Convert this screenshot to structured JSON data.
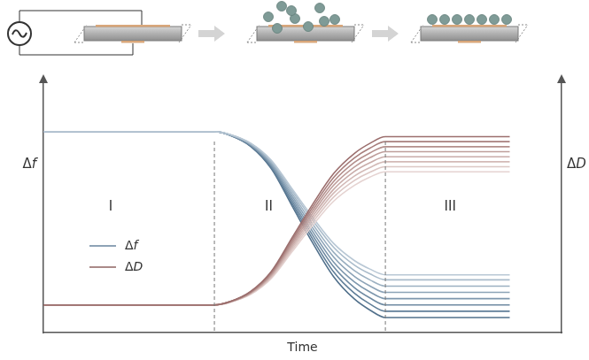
{
  "chart_data": {
    "type": "line",
    "x_label": "Time",
    "y_label": "Δf",
    "y2_label": "ΔD",
    "x": [
      0,
      10,
      20,
      30,
      33,
      36,
      40,
      44,
      48,
      52,
      56,
      60,
      63,
      66,
      70,
      80,
      90
    ],
    "xlim": [
      0,
      100
    ],
    "ylim": [
      0,
      100
    ],
    "y2lim": [
      0,
      100
    ],
    "tick_labels": false,
    "grid": false,
    "legend": "lower left",
    "dividers": [
      33,
      66
    ],
    "annotations": [
      {
        "text": "I",
        "x": 13,
        "y": 50
      },
      {
        "text": "II",
        "x": 43.5,
        "y": 50
      },
      {
        "text": "III",
        "x": 78.5,
        "y": 50
      }
    ],
    "series": [
      {
        "name": "Δf",
        "color": "#8ea3b6",
        "axis": "y",
        "colors": [
          "#b9c8d5",
          "#aabccb",
          "#9bb0c1",
          "#8ca3b7",
          "#7d97ad",
          "#6e8aa2",
          "#5f7e98",
          "#52718c"
        ],
        "values": [
          [
            80,
            80,
            80,
            80,
            80,
            78.9,
            75.4,
            68.6,
            57.2,
            45.8,
            35.5,
            28.7,
            25.3,
            23,
            23,
            23,
            23
          ],
          [
            80,
            80,
            80,
            80,
            80,
            78.8,
            75.3,
            68.2,
            56.4,
            44.6,
            34.0,
            26.9,
            23.4,
            21,
            21,
            21,
            21
          ],
          [
            80,
            80,
            80,
            80,
            80,
            78.8,
            75.1,
            67.7,
            55.4,
            43.1,
            32.0,
            24.7,
            21.0,
            18.5,
            18.5,
            18.5,
            18.5
          ],
          [
            80,
            80,
            80,
            80,
            80,
            78.7,
            74.9,
            67.2,
            54.4,
            41.6,
            30.1,
            22.4,
            18.6,
            16,
            16,
            16,
            16
          ],
          [
            80,
            80,
            80,
            80,
            80,
            78.7,
            74.7,
            66.7,
            53.4,
            40.1,
            28.1,
            20.2,
            16.2,
            13.5,
            13.5,
            13.5,
            13.5
          ],
          [
            80,
            80,
            80,
            80,
            80,
            78.6,
            74.5,
            66.2,
            52.4,
            38.6,
            26.2,
            17.9,
            13.8,
            11,
            11,
            11,
            11
          ],
          [
            80,
            80,
            80,
            80,
            80,
            78.6,
            74.3,
            65.7,
            51.4,
            37.1,
            24.2,
            15.7,
            11.4,
            8.5,
            8.5,
            8.5,
            8.5
          ],
          [
            80,
            80,
            80,
            80,
            80,
            78.5,
            74.1,
            65.2,
            50.4,
            35.6,
            22.3,
            13.4,
            9.0,
            6,
            6,
            6,
            6
          ]
        ]
      },
      {
        "name": "ΔD",
        "color": "#aa8a88",
        "axis": "y2",
        "colors": [
          "#9c6f6e",
          "#a87f7d",
          "#b48f8c",
          "#bf9e9b",
          "#c9aca9",
          "#d3bab7",
          "#dcc7c4",
          "#e5d3d1"
        ],
        "values": [
          [
            11,
            11,
            11,
            11,
            11,
            12.3,
            16.4,
            24.4,
            37.8,
            51.2,
            63.3,
            71.3,
            75.3,
            78,
            78,
            78,
            78
          ],
          [
            11,
            11,
            11,
            11,
            11,
            12.3,
            16.2,
            24.0,
            37.0,
            50.0,
            61.7,
            69.5,
            73.4,
            76,
            76,
            76,
            76
          ],
          [
            11,
            11,
            11,
            11,
            11,
            12.3,
            16.0,
            23.6,
            36.2,
            48.8,
            60.1,
            67.7,
            71.5,
            74,
            74,
            74,
            74
          ],
          [
            11,
            11,
            11,
            11,
            11,
            12.2,
            15.9,
            23.2,
            35.4,
            47.6,
            58.6,
            65.9,
            69.6,
            72,
            72,
            72,
            72
          ],
          [
            11,
            11,
            11,
            11,
            11,
            12.2,
            15.7,
            22.8,
            34.6,
            46.4,
            57.0,
            64.1,
            67.6,
            70,
            70,
            70,
            70
          ],
          [
            11,
            11,
            11,
            11,
            11,
            12.1,
            15.6,
            22.4,
            33.8,
            45.2,
            55.5,
            62.3,
            65.7,
            68,
            68,
            68,
            68
          ],
          [
            11,
            11,
            11,
            11,
            11,
            12.1,
            15.4,
            22.0,
            33.0,
            44.0,
            53.9,
            60.5,
            63.8,
            66,
            66,
            66,
            66
          ],
          [
            11,
            11,
            11,
            11,
            11,
            12.1,
            15.2,
            21.6,
            32.2,
            42.8,
            52.3,
            58.6,
            61.9,
            64,
            64,
            64,
            64
          ]
        ]
      }
    ]
  }
}
